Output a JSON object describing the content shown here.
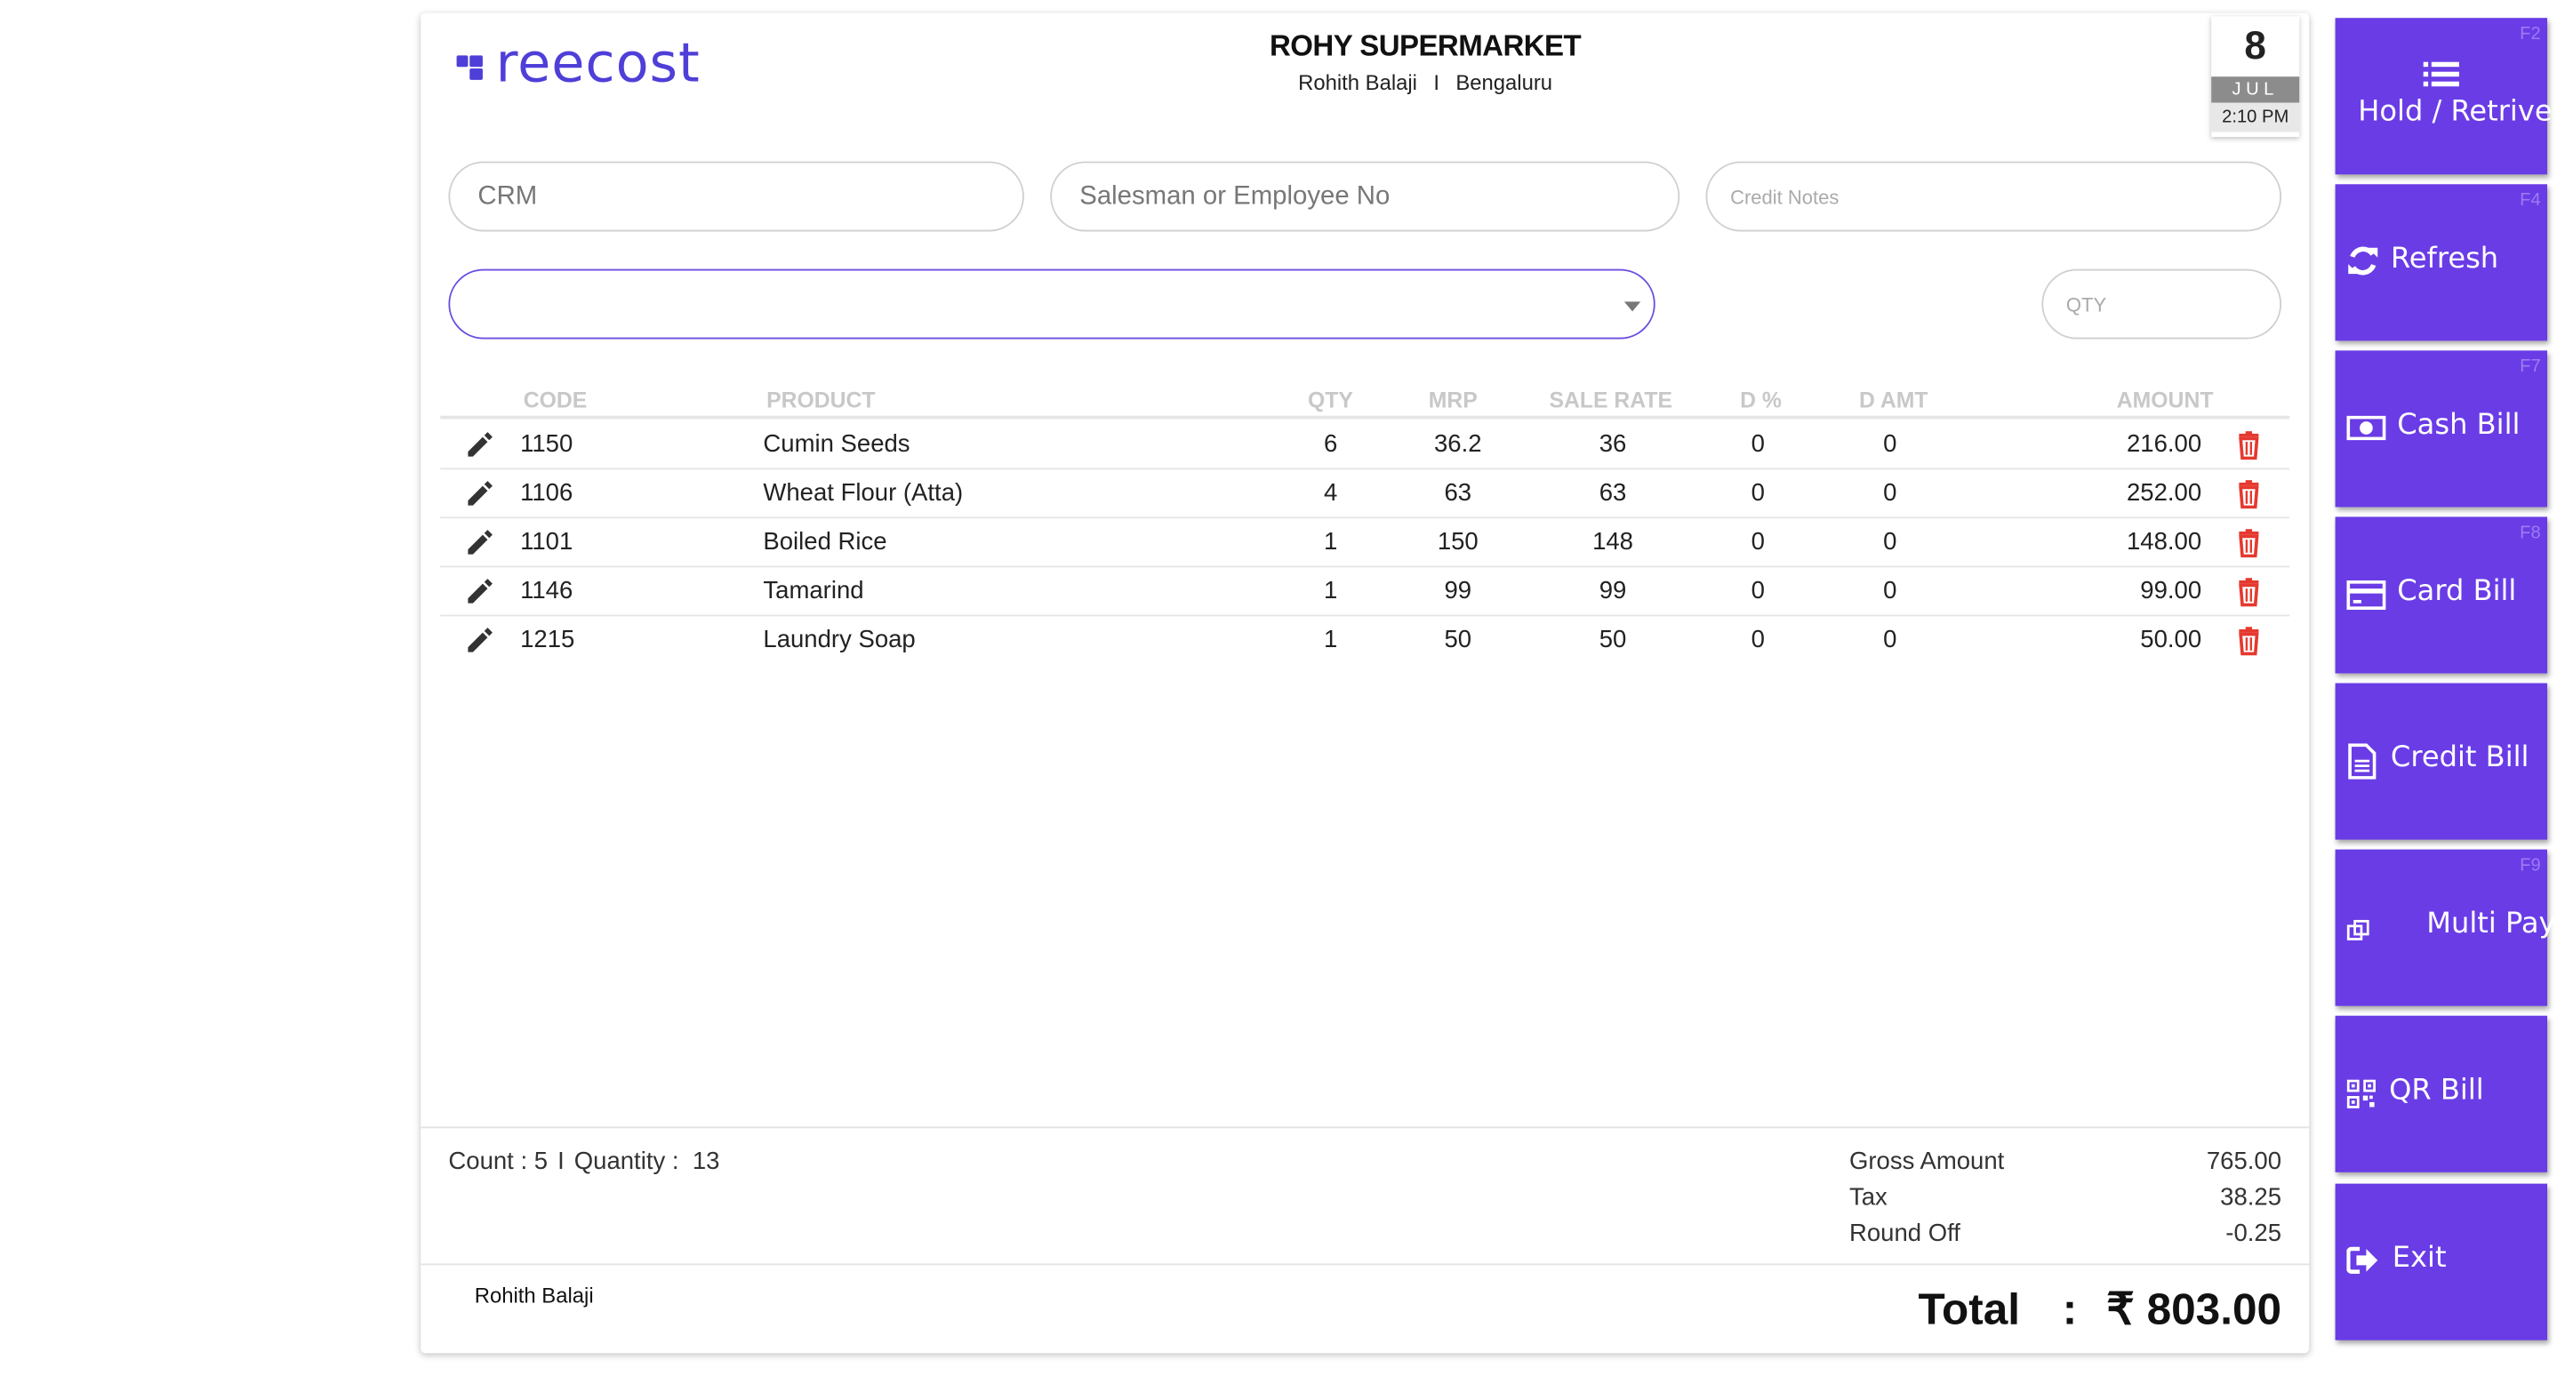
{
  "brand": {
    "logo_text": "reecost"
  },
  "store": {
    "name": "ROHY SUPERMARKET",
    "owner": "Rohith Balaji",
    "separator": "I",
    "city": "Bengaluru"
  },
  "date": {
    "day": "8",
    "month": "JUL",
    "time": "2:10 PM"
  },
  "fields": {
    "crm_placeholder": "CRM",
    "salesman_placeholder": "Salesman or Employee No",
    "credit_notes_placeholder": "Credit Notes",
    "product_select_value": "",
    "qty_placeholder": "QTY"
  },
  "table": {
    "headers": {
      "code": "CODE",
      "product": "PRODUCT",
      "qty": "QTY",
      "mrp": "MRP",
      "sale_rate": "SALE RATE",
      "d_pct": "D %",
      "d_amt": "D AMT",
      "amount": "AMOUNT"
    },
    "rows": [
      {
        "code": "1150",
        "product": "Cumin Seeds",
        "qty": "6",
        "mrp": "36.2",
        "sale_rate": "36",
        "d_pct": "0",
        "d_amt": "0",
        "amount": "216.00"
      },
      {
        "code": "1106",
        "product": "Wheat Flour (Atta)",
        "qty": "4",
        "mrp": "63",
        "sale_rate": "63",
        "d_pct": "0",
        "d_amt": "0",
        "amount": "252.00"
      },
      {
        "code": "1101",
        "product": "Boiled Rice",
        "qty": "1",
        "mrp": "150",
        "sale_rate": "148",
        "d_pct": "0",
        "d_amt": "0",
        "amount": "148.00"
      },
      {
        "code": "1146",
        "product": "Tamarind",
        "qty": "1",
        "mrp": "99",
        "sale_rate": "99",
        "d_pct": "0",
        "d_amt": "0",
        "amount": "99.00"
      },
      {
        "code": "1215",
        "product": "Laundry Soap",
        "qty": "1",
        "mrp": "50",
        "sale_rate": "50",
        "d_pct": "0",
        "d_amt": "0",
        "amount": "50.00"
      }
    ],
    "row_icons": {
      "edit": "pencil-icon",
      "delete": "trash-icon"
    }
  },
  "summary": {
    "count_label": "Count :",
    "count": "5",
    "separator": "I",
    "quantity_label": "Quantity :",
    "quantity": "13"
  },
  "totals": {
    "gross_label": "Gross Amount",
    "gross": "765.00",
    "tax_label": "Tax",
    "tax": "38.25",
    "round_label": "Round Off",
    "round": "-0.25"
  },
  "footer": {
    "user": "Rohith Balaji",
    "total_label": "Total",
    "total_colon": ":",
    "total_value": "₹ 803.00"
  },
  "side_buttons": [
    {
      "label": "Hold / Retrive",
      "fkey": "F2",
      "icon": "list-icon"
    },
    {
      "label": "Refresh",
      "fkey": "F4",
      "icon": "refresh-icon"
    },
    {
      "label": "Cash Bill",
      "fkey": "F7",
      "icon": "cash-icon"
    },
    {
      "label": "Card Bill",
      "fkey": "F8",
      "icon": "card-icon"
    },
    {
      "label": "Credit Bill",
      "fkey": "",
      "icon": "document-icon"
    },
    {
      "label": "Multi Pay",
      "fkey": "F9",
      "icon": "multi-pay-icon"
    },
    {
      "label": "QR Bill",
      "fkey": "",
      "icon": "qr-code-icon"
    },
    {
      "label": "Exit",
      "fkey": "",
      "icon": "exit-icon"
    }
  ],
  "colors": {
    "accent": "#6a3ce6",
    "brand": "#4f3fd8",
    "delete": "#e5392f"
  }
}
